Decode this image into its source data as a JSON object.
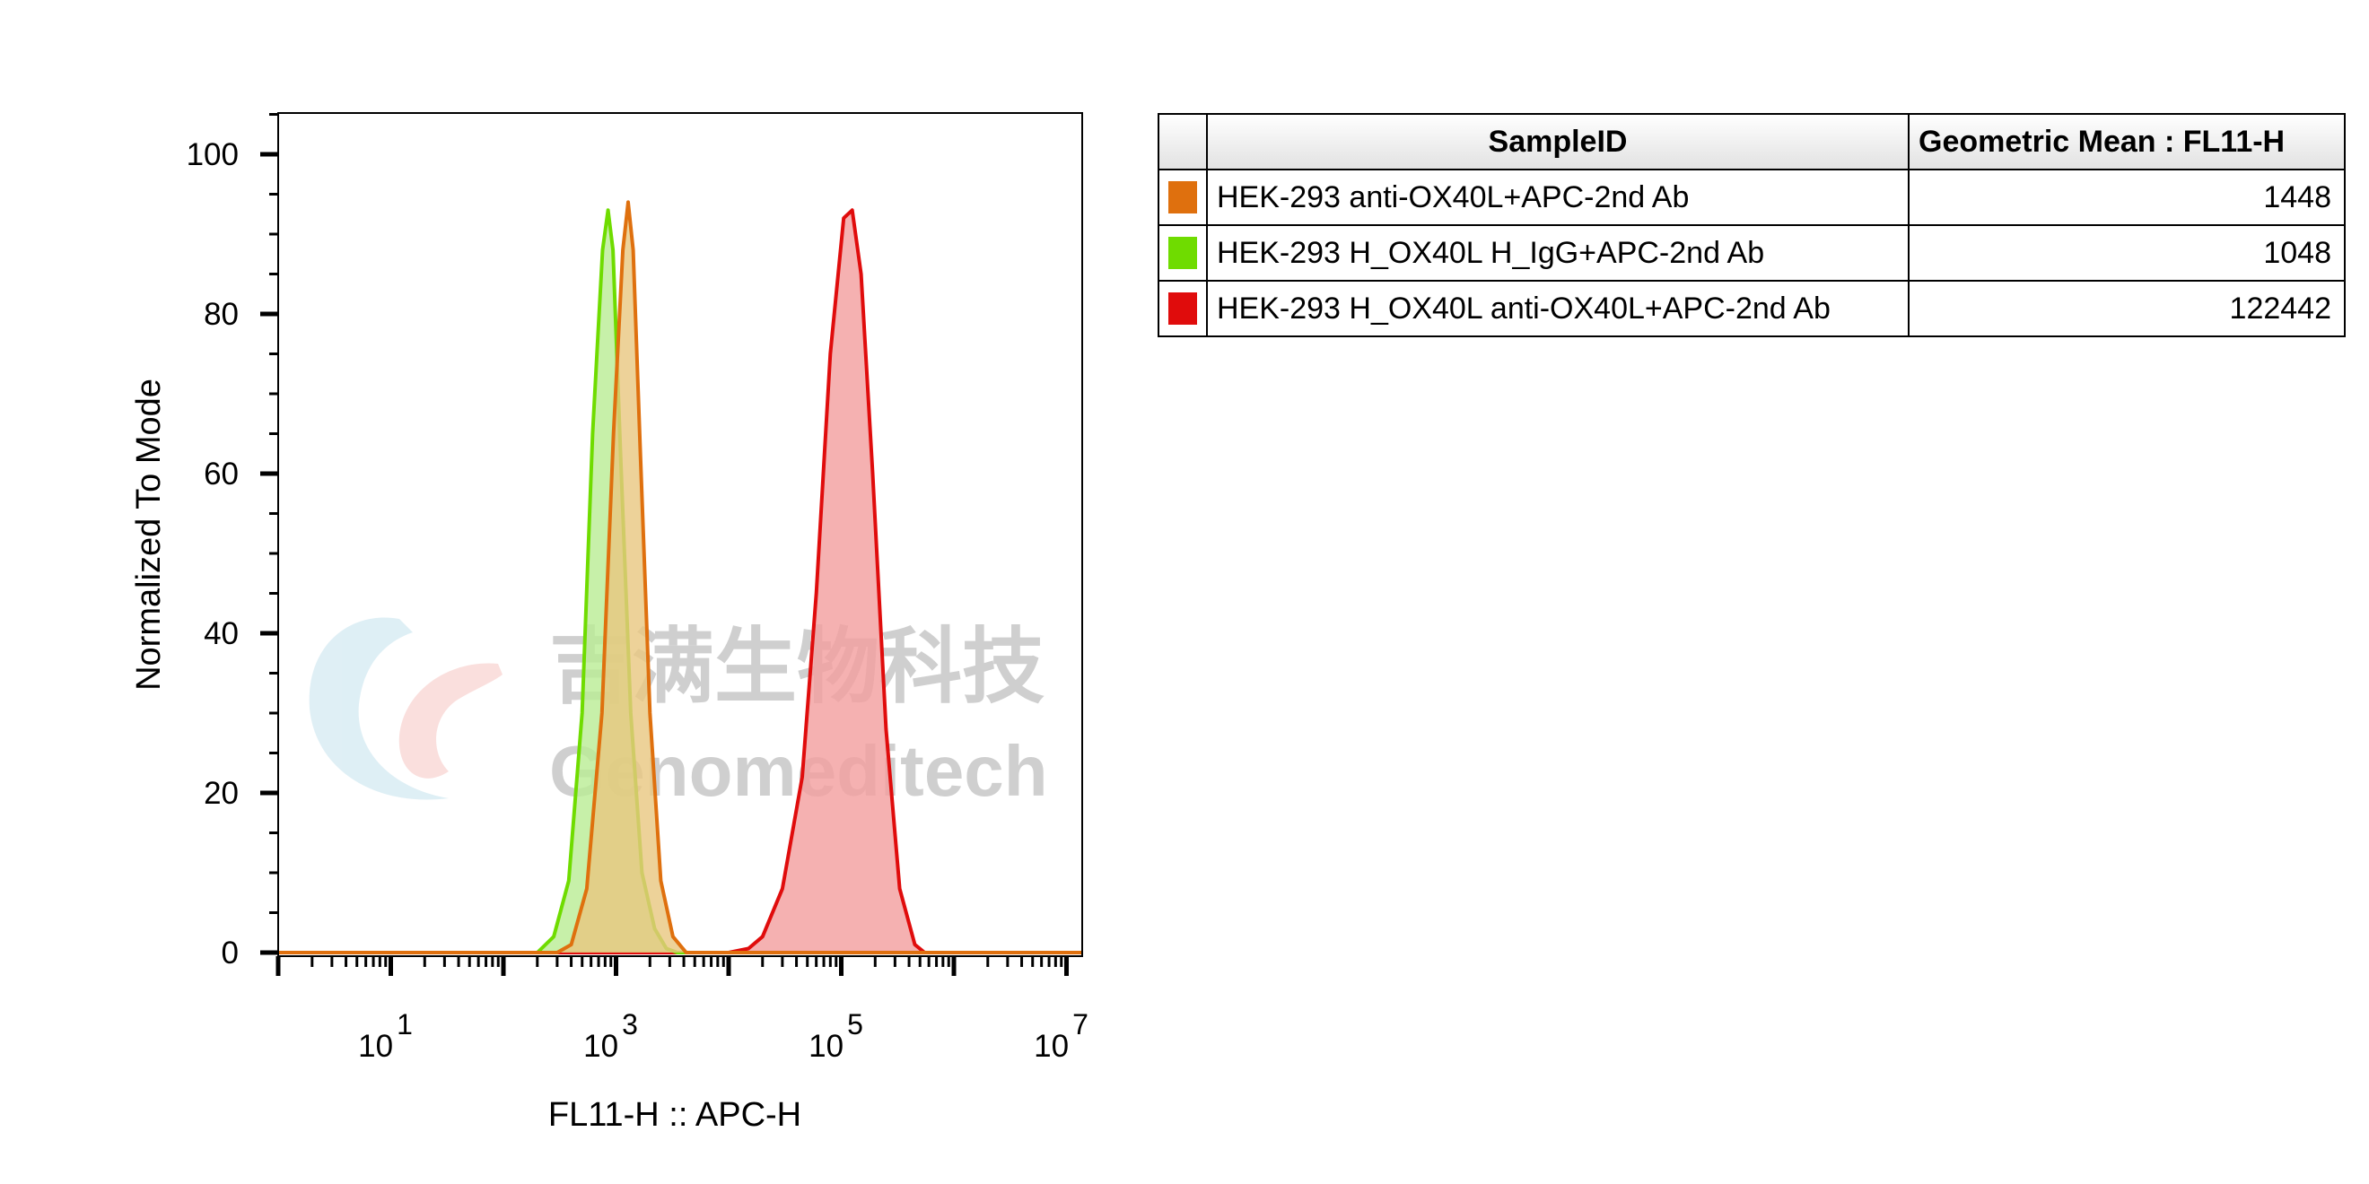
{
  "chart_data": {
    "type": "histogram",
    "xlabel": "FL11-H :: APC-H",
    "ylabel": "Normalized To Mode",
    "x_scale": "log",
    "xlim": [
      1,
      1000000000
    ],
    "ylim": [
      0,
      105
    ],
    "x_ticks": [
      {
        "base": "10",
        "exp": "1",
        "value": 10
      },
      {
        "base": "10",
        "exp": "3",
        "value": 1000
      },
      {
        "base": "10",
        "exp": "5",
        "value": 100000
      },
      {
        "base": "10",
        "exp": "7",
        "value": 10000000
      }
    ],
    "y_ticks": [
      {
        "label": "0",
        "value": 0
      },
      {
        "label": "20",
        "value": 20
      },
      {
        "label": "40",
        "value": 40
      },
      {
        "label": "60",
        "value": 60
      },
      {
        "label": "80",
        "value": 80
      },
      {
        "label": "100",
        "value": 100
      }
    ],
    "series": [
      {
        "name": "HEK-293 H_OX40L anti-OX40L+APC-2nd Ab",
        "color": "#e00c0c",
        "fill": "#f29d9d",
        "points": [
          [
            10000,
            0
          ],
          [
            15000,
            0.5
          ],
          [
            20000,
            2
          ],
          [
            30000,
            8
          ],
          [
            45000,
            22
          ],
          [
            60000,
            45
          ],
          [
            80000,
            75
          ],
          [
            105000,
            92
          ],
          [
            125000,
            93
          ],
          [
            150000,
            85
          ],
          [
            190000,
            60
          ],
          [
            250000,
            28
          ],
          [
            330000,
            8
          ],
          [
            450000,
            1
          ],
          [
            550000,
            0
          ]
        ]
      },
      {
        "name": "HEK-293 H_OX40L H_IgG+APC-2nd Ab",
        "color": "#6fdc00",
        "fill": "#b9ec94",
        "points": [
          [
            200,
            0
          ],
          [
            280,
            2
          ],
          [
            380,
            9
          ],
          [
            500,
            30
          ],
          [
            620,
            65
          ],
          [
            760,
            88
          ],
          [
            850,
            93
          ],
          [
            940,
            88
          ],
          [
            1100,
            62
          ],
          [
            1350,
            30
          ],
          [
            1700,
            10
          ],
          [
            2200,
            3
          ],
          [
            2800,
            0.5
          ],
          [
            3500,
            0
          ]
        ]
      },
      {
        "name": "HEK-293 anti-OX40L+APC-2nd Ab",
        "color": "#df700e",
        "fill": "#e9c77f",
        "points": [
          [
            300,
            0
          ],
          [
            400,
            1
          ],
          [
            550,
            8
          ],
          [
            750,
            30
          ],
          [
            950,
            65
          ],
          [
            1150,
            88
          ],
          [
            1280,
            94
          ],
          [
            1420,
            88
          ],
          [
            1650,
            62
          ],
          [
            2000,
            30
          ],
          [
            2500,
            9
          ],
          [
            3200,
            2
          ],
          [
            4200,
            0
          ]
        ]
      }
    ]
  },
  "table": {
    "header_sample": "SampleID",
    "header_mean": "Geometric Mean : FL11-H",
    "rows": [
      {
        "color": "#df700e",
        "sample": "HEK-293 anti-OX40L+APC-2nd Ab",
        "mean": "1448"
      },
      {
        "color": "#6fdc00",
        "sample": "HEK-293 H_OX40L H_IgG+APC-2nd Ab",
        "mean": "1048"
      },
      {
        "color": "#e00c0c",
        "sample": "HEK-293 H_OX40L anti-OX40L+APC-2nd Ab",
        "mean": "122442"
      }
    ]
  },
  "watermark": {
    "text_cn": "吉满生物科技",
    "text_en": "Genomeditech"
  }
}
